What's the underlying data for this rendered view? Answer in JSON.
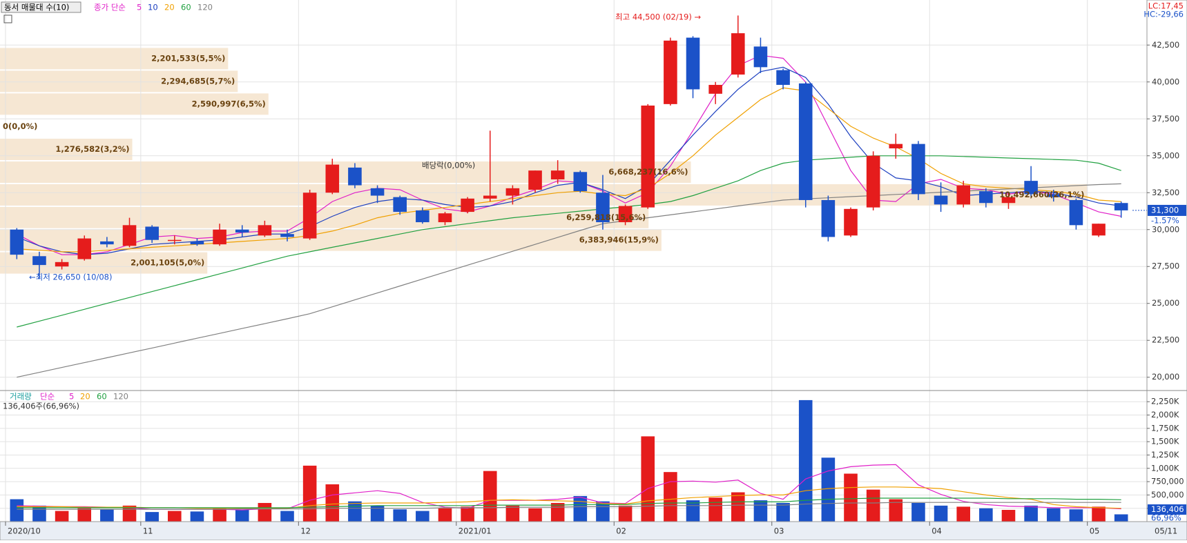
{
  "chart_data": {
    "type": "candlestick",
    "legend_title": "동서 매물대 수(10)",
    "price_legend_prefix": "종가 단순",
    "categories": [
      "2020/10",
      null,
      null,
      null,
      null,
      null,
      "11",
      null,
      null,
      null,
      null,
      null,
      null,
      "12",
      null,
      null,
      null,
      null,
      null,
      null,
      "2021/01",
      null,
      null,
      null,
      null,
      null,
      null,
      "02",
      null,
      null,
      null,
      null,
      null,
      null,
      "03",
      null,
      null,
      null,
      null,
      null,
      null,
      "04",
      null,
      null,
      null,
      null,
      null,
      null,
      "05",
      null
    ],
    "last_date": "05/11",
    "ylim": [
      19100,
      45550
    ],
    "yticks": [
      {
        "value": 20000,
        "label": "20,000"
      },
      {
        "value": 22500,
        "label": "22,500"
      },
      {
        "value": 25000,
        "label": "25,000"
      },
      {
        "value": 27500,
        "label": "27,500"
      },
      {
        "value": 30000,
        "label": "30,000"
      },
      {
        "value": 32500,
        "label": "32,500"
      },
      {
        "value": 35000,
        "label": "35,000"
      },
      {
        "value": 37500,
        "label": "37,500"
      },
      {
        "value": 40000,
        "label": "40,000"
      },
      {
        "value": 42500,
        "label": "42,500"
      }
    ],
    "open": [
      30000,
      28200,
      27500,
      28000,
      29200,
      28900,
      30200,
      29300,
      29200,
      29000,
      30000,
      29600,
      29700,
      29400,
      32500,
      34200,
      32800,
      32200,
      31300,
      30500,
      31200,
      32100,
      32300,
      32700,
      33400,
      33900,
      32500,
      30500,
      31500,
      38500,
      43000,
      39200,
      40500,
      42400,
      40800,
      39900,
      32000,
      29600,
      31500,
      35500,
      35800,
      32300,
      31700,
      32600,
      31800,
      33300,
      32400,
      32000,
      29600,
      31800
    ],
    "high": [
      30100,
      28500,
      28000,
      29600,
      29500,
      30800,
      30300,
      29600,
      29400,
      30400,
      30300,
      30600,
      30000,
      32700,
      34800,
      34500,
      33000,
      32300,
      31500,
      31200,
      32200,
      36700,
      33000,
      34000,
      34700,
      34000,
      33700,
      31700,
      38500,
      43000,
      43100,
      40000,
      44500,
      43000,
      40900,
      40000,
      32300,
      31500,
      35300,
      36500,
      36000,
      33200,
      33300,
      32800,
      32500,
      34300,
      32700,
      32100,
      30400,
      31900
    ],
    "low": [
      28000,
      26650,
      27300,
      27900,
      28800,
      28800,
      29100,
      29000,
      28900,
      28900,
      29500,
      29500,
      29200,
      29300,
      32400,
      32800,
      31800,
      31000,
      30400,
      30300,
      31100,
      31900,
      31700,
      32500,
      33100,
      32500,
      30000,
      30300,
      31400,
      38400,
      38900,
      38500,
      40300,
      40600,
      39500,
      31500,
      29200,
      29500,
      31300,
      34800,
      32000,
      31200,
      31500,
      31500,
      31400,
      32200,
      31900,
      30000,
      29500,
      30800
    ],
    "close": [
      28300,
      27600,
      27800,
      29400,
      29000,
      30300,
      29300,
      29300,
      29000,
      30000,
      29800,
      30300,
      29500,
      32500,
      34400,
      33000,
      32300,
      31200,
      30500,
      31100,
      32100,
      32300,
      32800,
      34000,
      34000,
      32600,
      30500,
      31600,
      38400,
      42800,
      39500,
      39800,
      43300,
      41000,
      39800,
      32000,
      29500,
      31400,
      35000,
      35800,
      32400,
      31700,
      33000,
      31800,
      32200,
      32400,
      32200,
      30300,
      30400,
      31300
    ],
    "up_color": "#e51c1c",
    "down_color": "#1b52c8",
    "series": [
      {
        "name": "5",
        "color": "#e020c8",
        "values": [
          29700,
          28900,
          28300,
          28300,
          28500,
          29000,
          29500,
          29600,
          29400,
          29500,
          29800,
          29900,
          29900,
          30800,
          31900,
          32500,
          32800,
          32700,
          32000,
          31400,
          31200,
          31600,
          32200,
          32700,
          33300,
          33200,
          32600,
          31800,
          32500,
          34300,
          36700,
          39200,
          41100,
          41800,
          41600,
          40000,
          37000,
          34000,
          32000,
          31900,
          33100,
          33400,
          32800,
          32700,
          32400,
          32600,
          32400,
          31800,
          31200,
          30900
        ]
      },
      {
        "name": "10",
        "color": "#1c3fc0",
        "values": [
          29500,
          28900,
          28500,
          28300,
          28400,
          28700,
          29000,
          29100,
          29200,
          29300,
          29500,
          29700,
          29700,
          30200,
          30900,
          31500,
          31900,
          32100,
          32000,
          31700,
          31500,
          31600,
          31900,
          32500,
          33000,
          33200,
          32700,
          32100,
          33000,
          34700,
          36400,
          38000,
          39500,
          40700,
          41000,
          40300,
          38500,
          36300,
          34500,
          33500,
          33300,
          32900,
          32300,
          32400,
          32500,
          32600,
          32500,
          32200,
          31800,
          31600
        ]
      },
      {
        "name": "20",
        "color": "#f0a000",
        "values": [
          28700,
          28600,
          28500,
          28500,
          28600,
          28700,
          28800,
          28900,
          29000,
          29100,
          29200,
          29300,
          29400,
          29600,
          29900,
          30300,
          30800,
          31100,
          31300,
          31500,
          31700,
          31900,
          32100,
          32300,
          32500,
          32600,
          32400,
          32300,
          32800,
          33800,
          35000,
          36400,
          37600,
          38800,
          39600,
          39400,
          38200,
          37000,
          36200,
          35600,
          34800,
          33800,
          33100,
          32900,
          32800,
          32700,
          32600,
          32400,
          32000,
          31900
        ]
      },
      {
        "name": "60",
        "color": "#20a040",
        "values": [
          23400,
          23800,
          24200,
          24600,
          25000,
          25400,
          25800,
          26200,
          26600,
          27000,
          27400,
          27800,
          28200,
          28500,
          28800,
          29100,
          29400,
          29700,
          30000,
          30200,
          30400,
          30600,
          30800,
          30950,
          31100,
          31250,
          31400,
          31550,
          31700,
          31900,
          32300,
          32800,
          33300,
          34000,
          34500,
          34700,
          34800,
          34900,
          35000,
          35000,
          35000,
          35000,
          34950,
          34900,
          34850,
          34800,
          34750,
          34700,
          34500,
          34000
        ]
      },
      {
        "name": "120",
        "color": "#808080",
        "values": [
          20000,
          20330,
          20660,
          20990,
          21320,
          21650,
          21980,
          22310,
          22640,
          22970,
          23300,
          23630,
          23960,
          24300,
          24770,
          25240,
          25710,
          26180,
          26650,
          27120,
          27590,
          28060,
          28530,
          29000,
          29470,
          29940,
          30400,
          30600,
          30800,
          31000,
          31200,
          31400,
          31600,
          31800,
          32000,
          32080,
          32150,
          32230,
          32300,
          32380,
          32450,
          32530,
          32600,
          32680,
          32750,
          32830,
          32900,
          32980,
          33050,
          33100
        ]
      }
    ],
    "high_note": "최고 44,500 (02/19) →",
    "low_note": "←최저 26,650 (10/08)",
    "dividend_note": "배당락(0,00%)",
    "lc": "LC:17,45",
    "hc": "HC:-29,66",
    "current_price": {
      "value": 31300,
      "label": "31,300"
    },
    "change": "-1.57%",
    "volume_profile": {
      "color": "#f6e7d3",
      "xlim": [
        0,
        11070000
      ],
      "levels": [
        42350,
        40810,
        39270,
        37730,
        36200,
        34660,
        33120,
        31580,
        30050,
        28510,
        26970
      ],
      "values": [
        2201533,
        2294685,
        2590997,
        0,
        1276582,
        6668237,
        10492660,
        6259818,
        6383946,
        2001105
      ],
      "value_labels": [
        "2,201,533(5,5%)",
        "2,294,685(5,7%)",
        "2,590,997(6,5%)",
        "0(0,0%)",
        "1,276,582(3,2%)",
        "6,668,237(16,6%)",
        "10,492,660(26,1%)",
        "6,259,818(15,6%)",
        "6,383,946(15,9%)",
        "2,001,105(5,0%)"
      ]
    },
    "volume": {
      "title": "거래량",
      "legend_prefix": "단순",
      "summary": "136,406주(66,96%)",
      "ylim": [
        0,
        2460000
      ],
      "yticks": [
        {
          "value": 250000,
          "label": "250,000"
        },
        {
          "value": 500000,
          "label": "500,000"
        },
        {
          "value": 750000,
          "label": "750,000"
        },
        {
          "value": 1000000,
          "label": "1,000K"
        },
        {
          "value": 1250000,
          "label": "1,250K"
        },
        {
          "value": 1500000,
          "label": "1,500K"
        },
        {
          "value": 1750000,
          "label": "1,750K"
        },
        {
          "value": 2000000,
          "label": "2,000K"
        },
        {
          "value": 2250000,
          "label": "2,250K"
        }
      ],
      "values": [
        420000,
        300000,
        200000,
        250000,
        230000,
        300000,
        180000,
        200000,
        190000,
        250000,
        220000,
        350000,
        200000,
        1050000,
        700000,
        380000,
        300000,
        230000,
        200000,
        250000,
        280000,
        950000,
        300000,
        250000,
        350000,
        480000,
        380000,
        300000,
        1600000,
        930000,
        400000,
        450000,
        550000,
        400000,
        350000,
        2280000,
        1200000,
        900000,
        600000,
        420000,
        350000,
        300000,
        280000,
        250000,
        220000,
        300000,
        250000,
        230000,
        280000,
        136406
      ],
      "last_label": "136,406",
      "last_pct": "66,96%",
      "series": [
        {
          "name": "5",
          "color": "#e020c8",
          "values": [
            300000,
            290000,
            280000,
            280000,
            270000,
            260000,
            230000,
            230000,
            230000,
            230000,
            220000,
            240000,
            240000,
            400000,
            500000,
            540000,
            580000,
            530000,
            360000,
            270000,
            250000,
            400000,
            400000,
            400000,
            420000,
            460000,
            350000,
            340000,
            620000,
            750000,
            760000,
            740000,
            780000,
            530000,
            420000,
            800000,
            950000,
            1030000,
            1060000,
            1070000,
            690000,
            510000,
            380000,
            320000,
            290000,
            280000,
            260000,
            260000,
            260000,
            240000
          ]
        },
        {
          "name": "20",
          "color": "#f0a000",
          "values": [
            280000,
            280000,
            280000,
            270000,
            270000,
            270000,
            260000,
            260000,
            250000,
            250000,
            250000,
            250000,
            250000,
            300000,
            330000,
            340000,
            350000,
            350000,
            350000,
            360000,
            370000,
            400000,
            410000,
            400000,
            390000,
            380000,
            340000,
            330000,
            390000,
            420000,
            450000,
            470000,
            490000,
            500000,
            500000,
            580000,
            620000,
            640000,
            650000,
            650000,
            640000,
            620000,
            560000,
            500000,
            450000,
            420000,
            320000,
            280000,
            260000,
            250000
          ]
        },
        {
          "name": "60",
          "color": "#20a040",
          "values": [
            260000,
            260000,
            260000,
            260000,
            260000,
            260000,
            260000,
            260000,
            260000,
            260000,
            260000,
            260000,
            260000,
            270000,
            280000,
            290000,
            300000,
            300000,
            300000,
            300000,
            300000,
            310000,
            310000,
            310000,
            310000,
            320000,
            320000,
            320000,
            340000,
            350000,
            350000,
            360000,
            370000,
            370000,
            370000,
            400000,
            420000,
            430000,
            440000,
            440000,
            440000,
            440000,
            440000,
            440000,
            430000,
            430000,
            430000,
            420000,
            420000,
            410000
          ]
        },
        {
          "name": "120",
          "color": "#808080",
          "values": [
            230000,
            230000,
            230000,
            230000,
            230000,
            230000,
            230000,
            230000,
            230000,
            230000,
            240000,
            240000,
            240000,
            240000,
            250000,
            250000,
            250000,
            250000,
            250000,
            260000,
            260000,
            260000,
            270000,
            270000,
            270000,
            280000,
            280000,
            280000,
            290000,
            300000,
            300000,
            300000,
            310000,
            310000,
            310000,
            330000,
            340000,
            350000,
            350000,
            360000,
            360000,
            360000,
            360000,
            360000,
            360000,
            360000,
            360000,
            360000,
            360000,
            360000
          ]
        }
      ]
    }
  }
}
